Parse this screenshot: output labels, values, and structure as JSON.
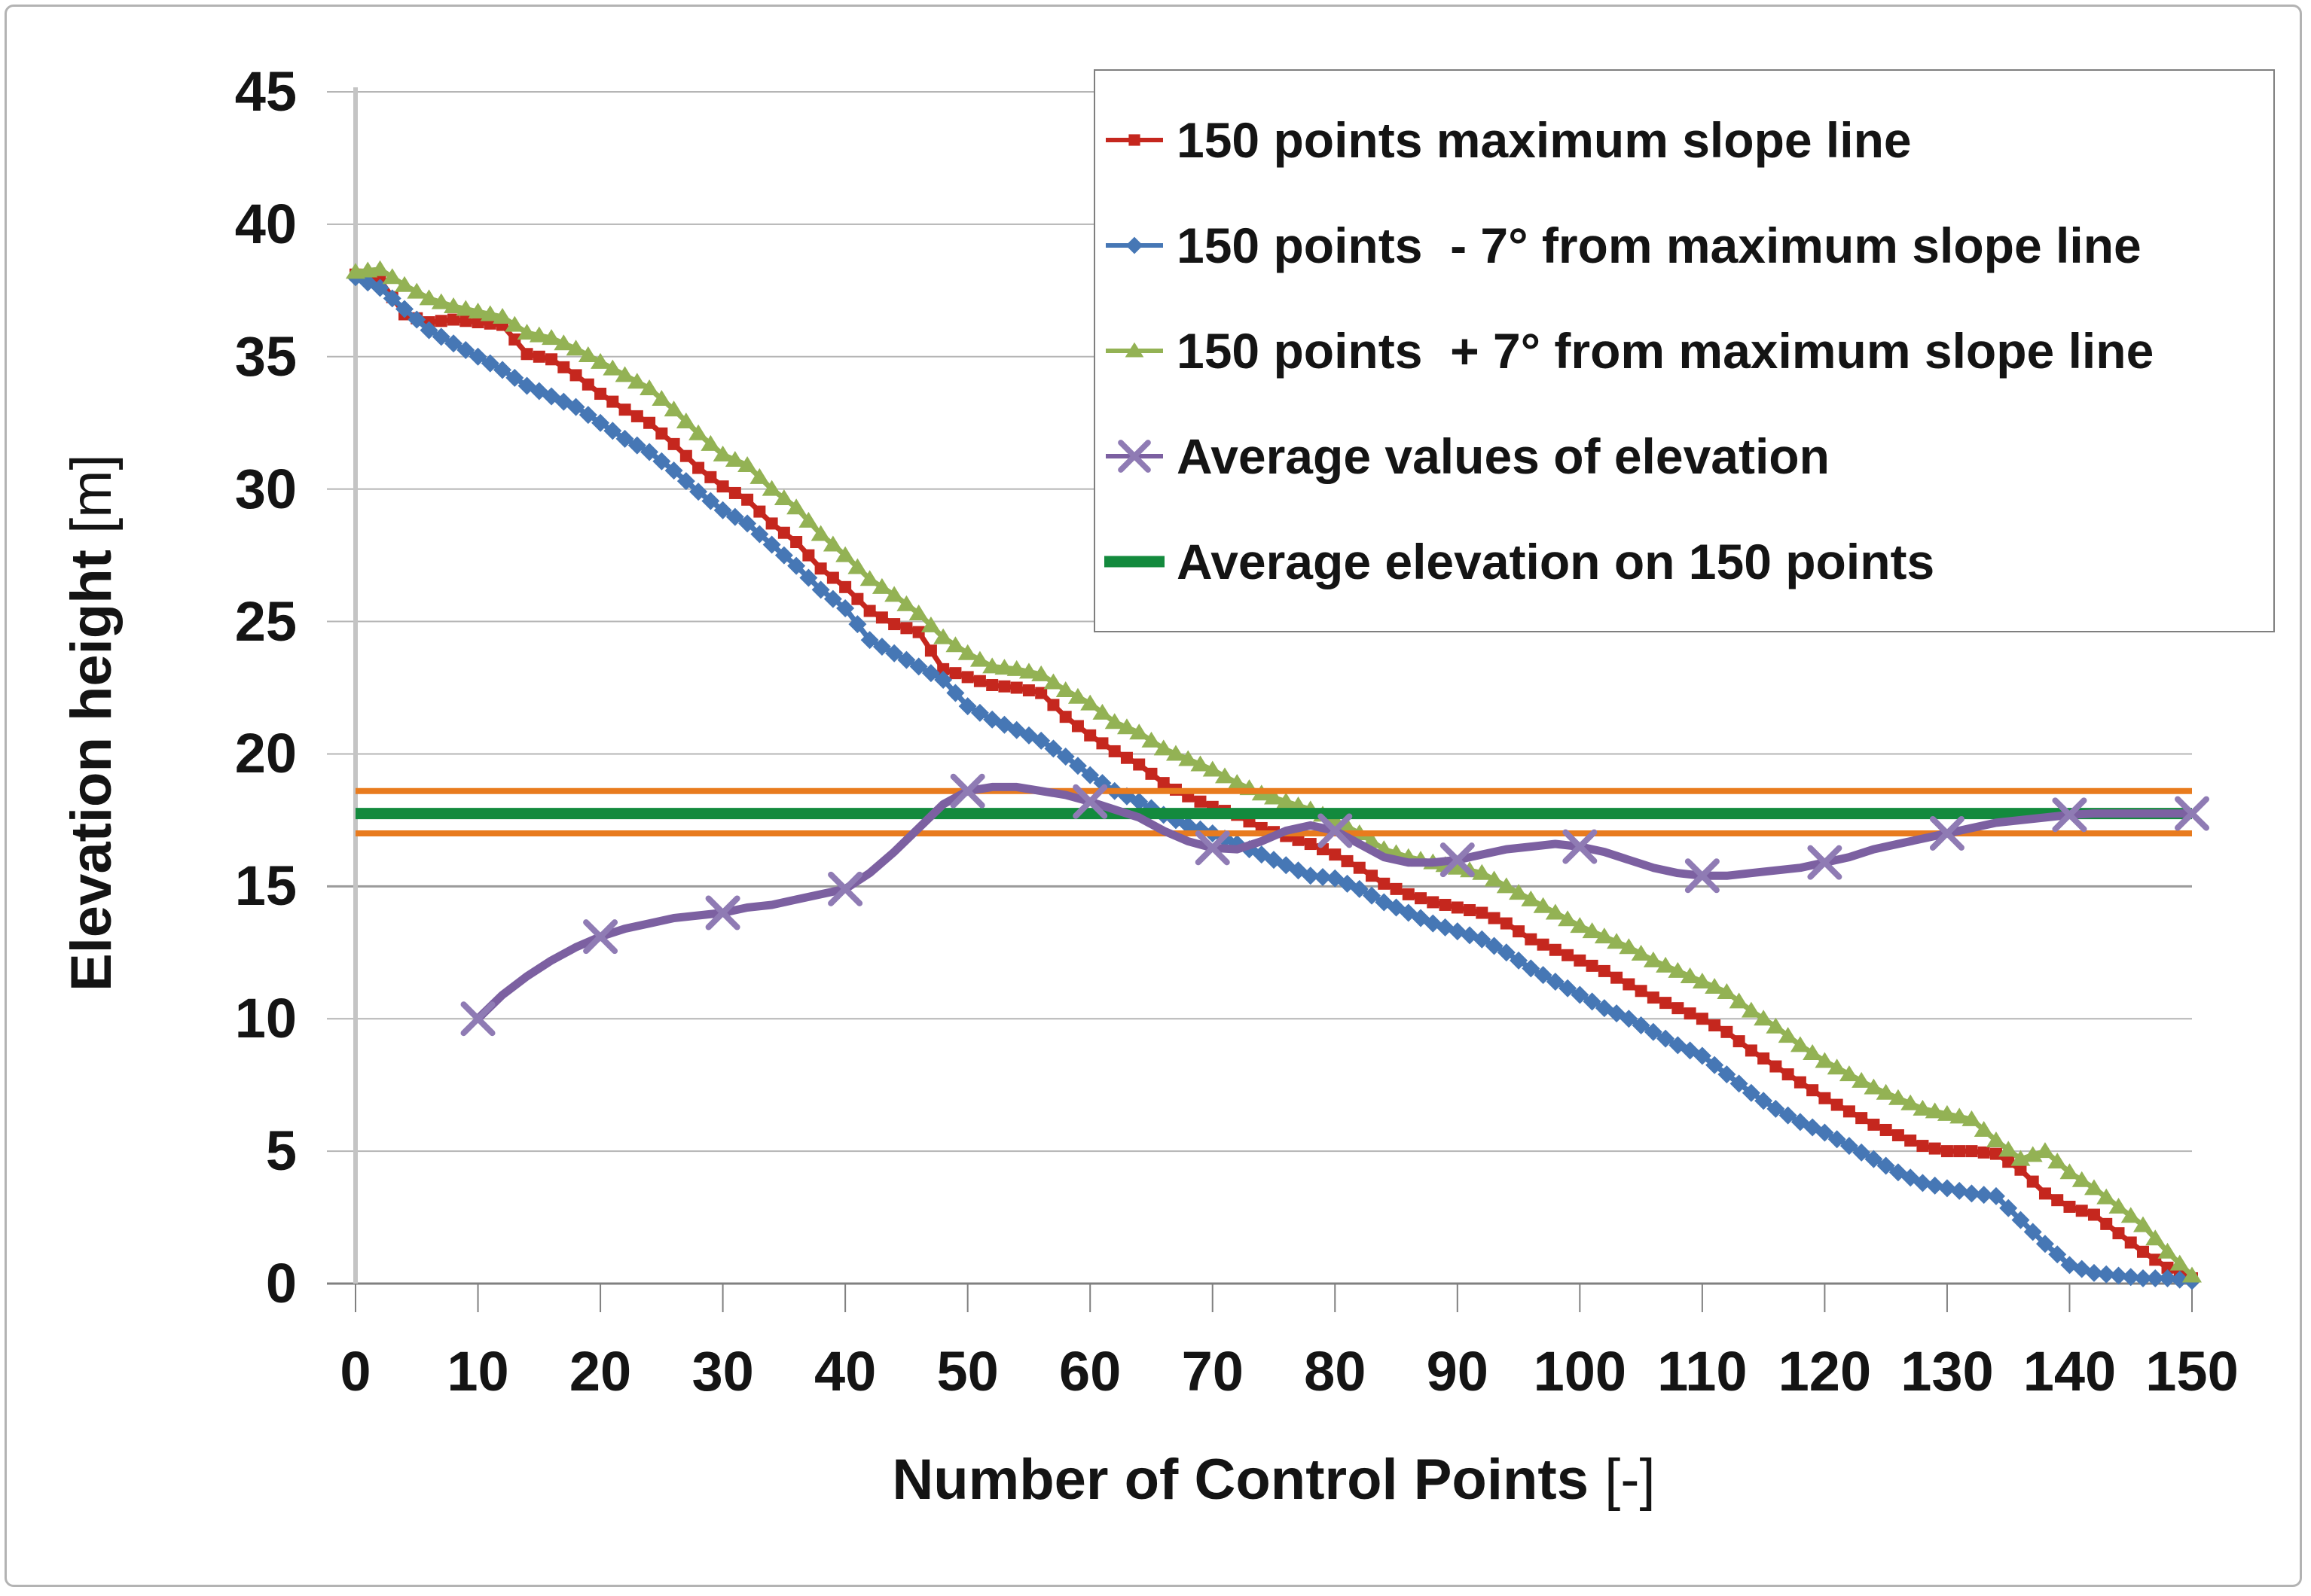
{
  "colors": {
    "background": "#ffffff",
    "frame_border": "#b3b3b3",
    "grid": "#b5b5b5",
    "grid_dark": "#9a9a9a",
    "axis_line": "#808080",
    "y_axis_line": "#c4c4c4",
    "text": "#141414",
    "legend_border": "#7f7f7f",
    "series_red": "#c5271e",
    "series_blue": "#4677b5",
    "series_green": "#93b254",
    "series_purple": "#7c60a1",
    "series_darkgreen": "#138a3d",
    "reference_orange": "#e87b1e"
  },
  "axes": {
    "x": {
      "label": "Number of Control Points",
      "unit": "[-]",
      "min": 0,
      "max": 150,
      "tick_step": 10,
      "ticks": [
        "0",
        "10",
        "20",
        "30",
        "40",
        "50",
        "60",
        "70",
        "80",
        "90",
        "100",
        "110",
        "120",
        "130",
        "140",
        "150"
      ]
    },
    "y": {
      "label": "Elevation height",
      "unit": "[m]",
      "min": 0,
      "max": 45,
      "tick_step": 5,
      "ticks": [
        "0",
        "5",
        "10",
        "15",
        "20",
        "25",
        "30",
        "35",
        "40",
        "45"
      ]
    }
  },
  "legend": {
    "items": [
      {
        "label": "150 points maximum slope line",
        "marker": "square",
        "color": "#c5271e"
      },
      {
        "label": "150 points  - 7° from maximum slope line",
        "marker": "diamond",
        "color": "#4677b5"
      },
      {
        "label": "150 points  + 7° from maximum slope line",
        "marker": "triangle",
        "color": "#93b254"
      },
      {
        "label": "Average values of elevation",
        "marker": "x",
        "color": "#7c60a1"
      },
      {
        "label": "Average elevation on 150 points",
        "marker": "thickline",
        "color": "#138a3d"
      }
    ]
  },
  "chart_data": {
    "type": "line",
    "title": "",
    "xlabel": "Number of Control Points [-]",
    "ylabel": "Elevation height [m]",
    "xlim": [
      0,
      150
    ],
    "ylim": [
      0,
      45
    ],
    "grid": "horizontal",
    "legend_position": "top-right",
    "series": [
      {
        "name": "150 points maximum slope line",
        "color": "#c5271e",
        "marker": "square",
        "x_start": 0,
        "x_step": 2,
        "values": [
          38.1,
          37.9,
          36.6,
          36.3,
          36.4,
          36.3,
          36.2,
          35.1,
          34.9,
          34.3,
          33.6,
          33.0,
          32.5,
          31.7,
          30.8,
          30.1,
          29.6,
          28.7,
          28.0,
          27.0,
          26.3,
          25.4,
          24.9,
          24.6,
          23.2,
          22.9,
          22.6,
          22.5,
          22.3,
          21.4,
          20.7,
          20.1,
          19.6,
          18.9,
          18.4,
          18.0,
          17.7,
          17.2,
          16.9,
          16.6,
          16.2,
          15.7,
          15.1,
          14.7,
          14.4,
          14.2,
          14.0,
          13.6,
          13.0,
          12.6,
          12.2,
          11.8,
          11.3,
          10.8,
          10.4,
          10.0,
          9.5,
          8.8,
          8.2,
          7.6,
          7.0,
          6.5,
          6.0,
          5.6,
          5.2,
          5.0,
          5.0,
          4.9,
          4.3,
          3.4,
          2.9,
          2.6,
          1.9,
          1.2,
          0.6,
          0.2
        ]
      },
      {
        "name": "150 points  - 7° from maximum slope line",
        "color": "#4677b5",
        "marker": "diamond",
        "x_start": 0,
        "x_step": 2,
        "values": [
          38.0,
          37.6,
          36.8,
          36.0,
          35.5,
          35.0,
          34.5,
          33.9,
          33.5,
          33.1,
          32.5,
          31.9,
          31.4,
          30.7,
          29.9,
          29.2,
          28.7,
          27.9,
          27.1,
          26.2,
          25.5,
          24.3,
          23.8,
          23.3,
          22.8,
          21.8,
          21.3,
          20.9,
          20.5,
          19.9,
          19.2,
          18.6,
          18.2,
          17.7,
          17.3,
          17.0,
          16.6,
          16.2,
          15.8,
          15.4,
          15.3,
          14.9,
          14.4,
          14.0,
          13.6,
          13.3,
          13.0,
          12.5,
          11.9,
          11.4,
          10.9,
          10.4,
          10.0,
          9.5,
          9.0,
          8.6,
          7.9,
          7.2,
          6.6,
          6.1,
          5.7,
          5.2,
          4.7,
          4.2,
          3.8,
          3.6,
          3.4,
          3.3,
          2.4,
          1.5,
          0.7,
          0.4,
          0.3,
          0.2,
          0.2,
          0.1
        ]
      },
      {
        "name": "150 points  + 7° from maximum slope line",
        "color": "#93b254",
        "marker": "triangle",
        "x_start": 0,
        "x_step": 2,
        "values": [
          38.2,
          38.3,
          37.7,
          37.2,
          36.9,
          36.7,
          36.5,
          35.9,
          35.7,
          35.3,
          34.8,
          34.3,
          33.8,
          33.0,
          32.1,
          31.3,
          30.9,
          30.0,
          29.3,
          28.3,
          27.5,
          26.6,
          26.0,
          25.3,
          24.4,
          23.8,
          23.3,
          23.2,
          23.0,
          22.4,
          21.9,
          21.2,
          20.8,
          20.2,
          19.8,
          19.4,
          18.9,
          18.5,
          18.2,
          17.9,
          17.5,
          17.0,
          16.4,
          16.1,
          15.9,
          15.7,
          15.5,
          15.0,
          14.5,
          14.0,
          13.5,
          13.1,
          12.7,
          12.2,
          11.8,
          11.4,
          11.0,
          10.3,
          9.7,
          9.0,
          8.4,
          7.9,
          7.4,
          7.0,
          6.6,
          6.4,
          6.2,
          5.4,
          4.7,
          5.0,
          4.2,
          3.6,
          2.9,
          2.2,
          1.2,
          0.3
        ]
      },
      {
        "name": "Average values of elevation",
        "color": "#7c60a1",
        "marker": "x",
        "marker_color": "#8f7bb4",
        "marker_every": 10,
        "points": [
          [
            10,
            10.0
          ],
          [
            12,
            10.9
          ],
          [
            14,
            11.6
          ],
          [
            16,
            12.2
          ],
          [
            18,
            12.7
          ],
          [
            20,
            13.1
          ],
          [
            22,
            13.4
          ],
          [
            24,
            13.6
          ],
          [
            26,
            13.8
          ],
          [
            28,
            13.9
          ],
          [
            30,
            14.0
          ],
          [
            32,
            14.2
          ],
          [
            34,
            14.3
          ],
          [
            36,
            14.5
          ],
          [
            38,
            14.7
          ],
          [
            40,
            14.9
          ],
          [
            42,
            15.5
          ],
          [
            44,
            16.3
          ],
          [
            46,
            17.2
          ],
          [
            48,
            18.1
          ],
          [
            50,
            18.6
          ],
          [
            52,
            18.75
          ],
          [
            54,
            18.75
          ],
          [
            56,
            18.6
          ],
          [
            58,
            18.45
          ],
          [
            60,
            18.2
          ],
          [
            62,
            17.9
          ],
          [
            64,
            17.6
          ],
          [
            66,
            17.1
          ],
          [
            68,
            16.7
          ],
          [
            70,
            16.45
          ],
          [
            72,
            16.4
          ],
          [
            74,
            16.7
          ],
          [
            76,
            17.1
          ],
          [
            78,
            17.3
          ],
          [
            80,
            17.1
          ],
          [
            82,
            16.6
          ],
          [
            84,
            16.1
          ],
          [
            86,
            15.9
          ],
          [
            88,
            15.9
          ],
          [
            90,
            16.0
          ],
          [
            92,
            16.2
          ],
          [
            94,
            16.4
          ],
          [
            96,
            16.5
          ],
          [
            98,
            16.6
          ],
          [
            100,
            16.5
          ],
          [
            102,
            16.3
          ],
          [
            104,
            16.0
          ],
          [
            106,
            15.7
          ],
          [
            108,
            15.5
          ],
          [
            110,
            15.4
          ],
          [
            112,
            15.4
          ],
          [
            114,
            15.5
          ],
          [
            116,
            15.6
          ],
          [
            118,
            15.7
          ],
          [
            120,
            15.9
          ],
          [
            122,
            16.1
          ],
          [
            124,
            16.4
          ],
          [
            126,
            16.6
          ],
          [
            128,
            16.8
          ],
          [
            130,
            17.0
          ],
          [
            132,
            17.2
          ],
          [
            134,
            17.4
          ],
          [
            136,
            17.5
          ],
          [
            138,
            17.6
          ],
          [
            140,
            17.7
          ],
          [
            142,
            17.75
          ],
          [
            144,
            17.75
          ],
          [
            146,
            17.75
          ],
          [
            148,
            17.75
          ],
          [
            150,
            17.75
          ]
        ]
      }
    ],
    "horizontal_lines": [
      {
        "name": "upper orange reference line",
        "value": 18.6,
        "color": "#e87b1e",
        "stroke_width": 8
      },
      {
        "name": "lower orange reference line",
        "value": 17.0,
        "color": "#e87b1e",
        "stroke_width": 8
      },
      {
        "name": "Average elevation on 150 points",
        "value": 17.75,
        "color": "#138a3d",
        "stroke_width": 15
      }
    ]
  }
}
